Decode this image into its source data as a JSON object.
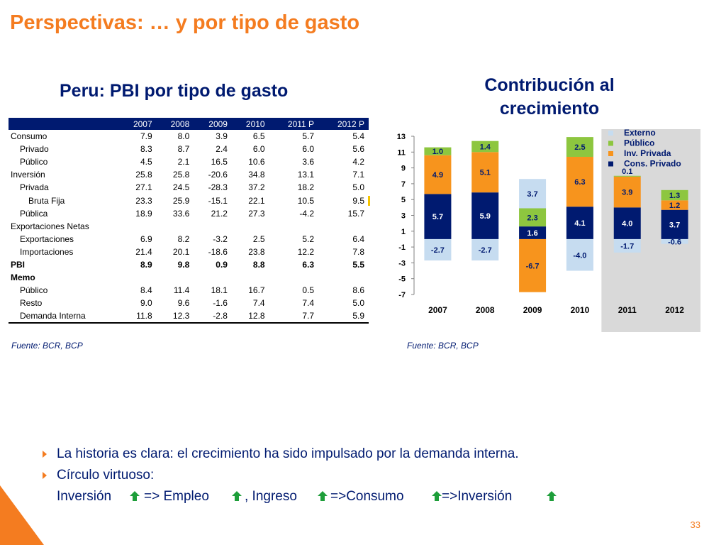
{
  "page": {
    "title": "Perspectivas: … y por tipo de gasto",
    "table_title": "Peru: PBI por tipo de gasto",
    "chart_title": "Contribución al crecimiento",
    "source_left": "Fuente: BCR, BCP",
    "source_right": "Fuente: BCR, BCP",
    "page_number": "33"
  },
  "table": {
    "headers": [
      "",
      "2007",
      "2008",
      "2009",
      "2010",
      "2011 P",
      "2012 P"
    ],
    "rows": [
      {
        "label": "Consumo",
        "indent": 0,
        "bold": false,
        "values": [
          "7.9",
          "8.0",
          "3.9",
          "6.5",
          "5.7",
          "5.4"
        ]
      },
      {
        "label": "Privado",
        "indent": 1,
        "bold": false,
        "values": [
          "8.3",
          "8.7",
          "2.4",
          "6.0",
          "6.0",
          "5.6"
        ]
      },
      {
        "label": "Público",
        "indent": 1,
        "bold": false,
        "values": [
          "4.5",
          "2.1",
          "16.5",
          "10.6",
          "3.6",
          "4.2"
        ]
      },
      {
        "label": "Inversión",
        "indent": 0,
        "bold": false,
        "values": [
          "25.8",
          "25.8",
          "-20.6",
          "34.8",
          "13.1",
          "7.1"
        ]
      },
      {
        "label": "Privada",
        "indent": 1,
        "bold": false,
        "values": [
          "27.1",
          "24.5",
          "-28.3",
          "37.2",
          "18.2",
          "5.0"
        ]
      },
      {
        "label": "Bruta Fija",
        "indent": 2,
        "bold": false,
        "values": [
          "23.3",
          "25.9",
          "-15.1",
          "22.1",
          "10.5",
          "9.5"
        ]
      },
      {
        "label": "Pública",
        "indent": 1,
        "bold": false,
        "values": [
          "18.9",
          "33.6",
          "21.2",
          "27.3",
          "-4.2",
          "15.7"
        ]
      },
      {
        "label": "Exportaciones Netas",
        "indent": 0,
        "bold": false,
        "values": [
          "",
          "",
          "",
          "",
          "",
          ""
        ]
      },
      {
        "label": "Exportaciones",
        "indent": 1,
        "bold": false,
        "values": [
          "6.9",
          "8.2",
          "-3.2",
          "2.5",
          "5.2",
          "6.4"
        ]
      },
      {
        "label": "Importaciones",
        "indent": 1,
        "bold": false,
        "values": [
          "21.4",
          "20.1",
          "-18.6",
          "23.8",
          "12.2",
          "7.8"
        ]
      },
      {
        "label": "PBI",
        "indent": 0,
        "bold": true,
        "values": [
          "8.9",
          "9.8",
          "0.9",
          "8.8",
          "6.3",
          "5.5"
        ]
      },
      {
        "label": "Memo",
        "indent": 0,
        "bold": true,
        "values": [
          "",
          "",
          "",
          "",
          "",
          ""
        ]
      },
      {
        "label": "Público",
        "indent": 1,
        "bold": false,
        "values": [
          "8.4",
          "11.4",
          "18.1",
          "16.7",
          "0.5",
          "8.6"
        ]
      },
      {
        "label": "Resto",
        "indent": 1,
        "bold": false,
        "values": [
          "9.0",
          "9.6",
          "-1.6",
          "7.4",
          "7.4",
          "5.0"
        ]
      },
      {
        "label": "Demanda Interna",
        "indent": 1,
        "bold": false,
        "values": [
          "11.8",
          "12.3",
          "-2.8",
          "12.8",
          "7.7",
          "5.9"
        ]
      }
    ]
  },
  "chart_data": {
    "type": "bar",
    "stacked": true,
    "title": "Contribución al crecimiento",
    "categories": [
      "2007",
      "2008",
      "2009",
      "2010",
      "2011",
      "2012"
    ],
    "ylim": [
      -7,
      13
    ],
    "yticks": [
      "13",
      "11",
      "9",
      "7",
      "5",
      "3",
      "1",
      "-1",
      "-3",
      "-5",
      "-7"
    ],
    "legend_position": "top-right",
    "shaded_categories": [
      "2011",
      "2012"
    ],
    "series": [
      {
        "name": "Cons. Privado",
        "color": "#001a70",
        "values": [
          5.7,
          5.9,
          1.6,
          4.1,
          4.0,
          3.7
        ],
        "labels": [
          "5.7",
          "5.9",
          "1.6",
          "4.1",
          "4.0",
          "3.7"
        ]
      },
      {
        "name": "Inv. Privada",
        "color": "#f7941d",
        "values": [
          4.9,
          5.1,
          -6.7,
          6.3,
          3.9,
          1.2
        ],
        "labels": [
          "4.9",
          "5.1",
          "-6.7",
          "6.3",
          "3.9",
          "1.2"
        ]
      },
      {
        "name": "Público",
        "color": "#8dc63f",
        "values": [
          1.0,
          1.4,
          2.3,
          2.5,
          0.1,
          1.3
        ],
        "labels": [
          "1.0",
          "1.4",
          "2.3",
          "2.5",
          "0.1",
          "1.3"
        ]
      },
      {
        "name": "Externo",
        "color": "#c6dcf0",
        "values": [
          -2.7,
          -2.7,
          3.7,
          -4.0,
          -1.7,
          -0.6
        ],
        "labels": [
          "-2.7",
          "-2.7",
          "3.7",
          "-4.0",
          "-1.7",
          "-0.6"
        ]
      }
    ]
  },
  "bullets": [
    {
      "text": "La historia es clara: el crecimiento ha sido impulsado por la demanda interna."
    },
    {
      "text": "Círculo virtuoso:"
    }
  ],
  "equation": {
    "part1": "Inversión",
    "part2": "=> Empleo",
    "part3": ", Ingreso",
    "part4": "=>Consumo",
    "part5": "=>Inversión",
    "arrow_color": "#1e9e3a",
    "icon": "up-arrow-icon"
  }
}
